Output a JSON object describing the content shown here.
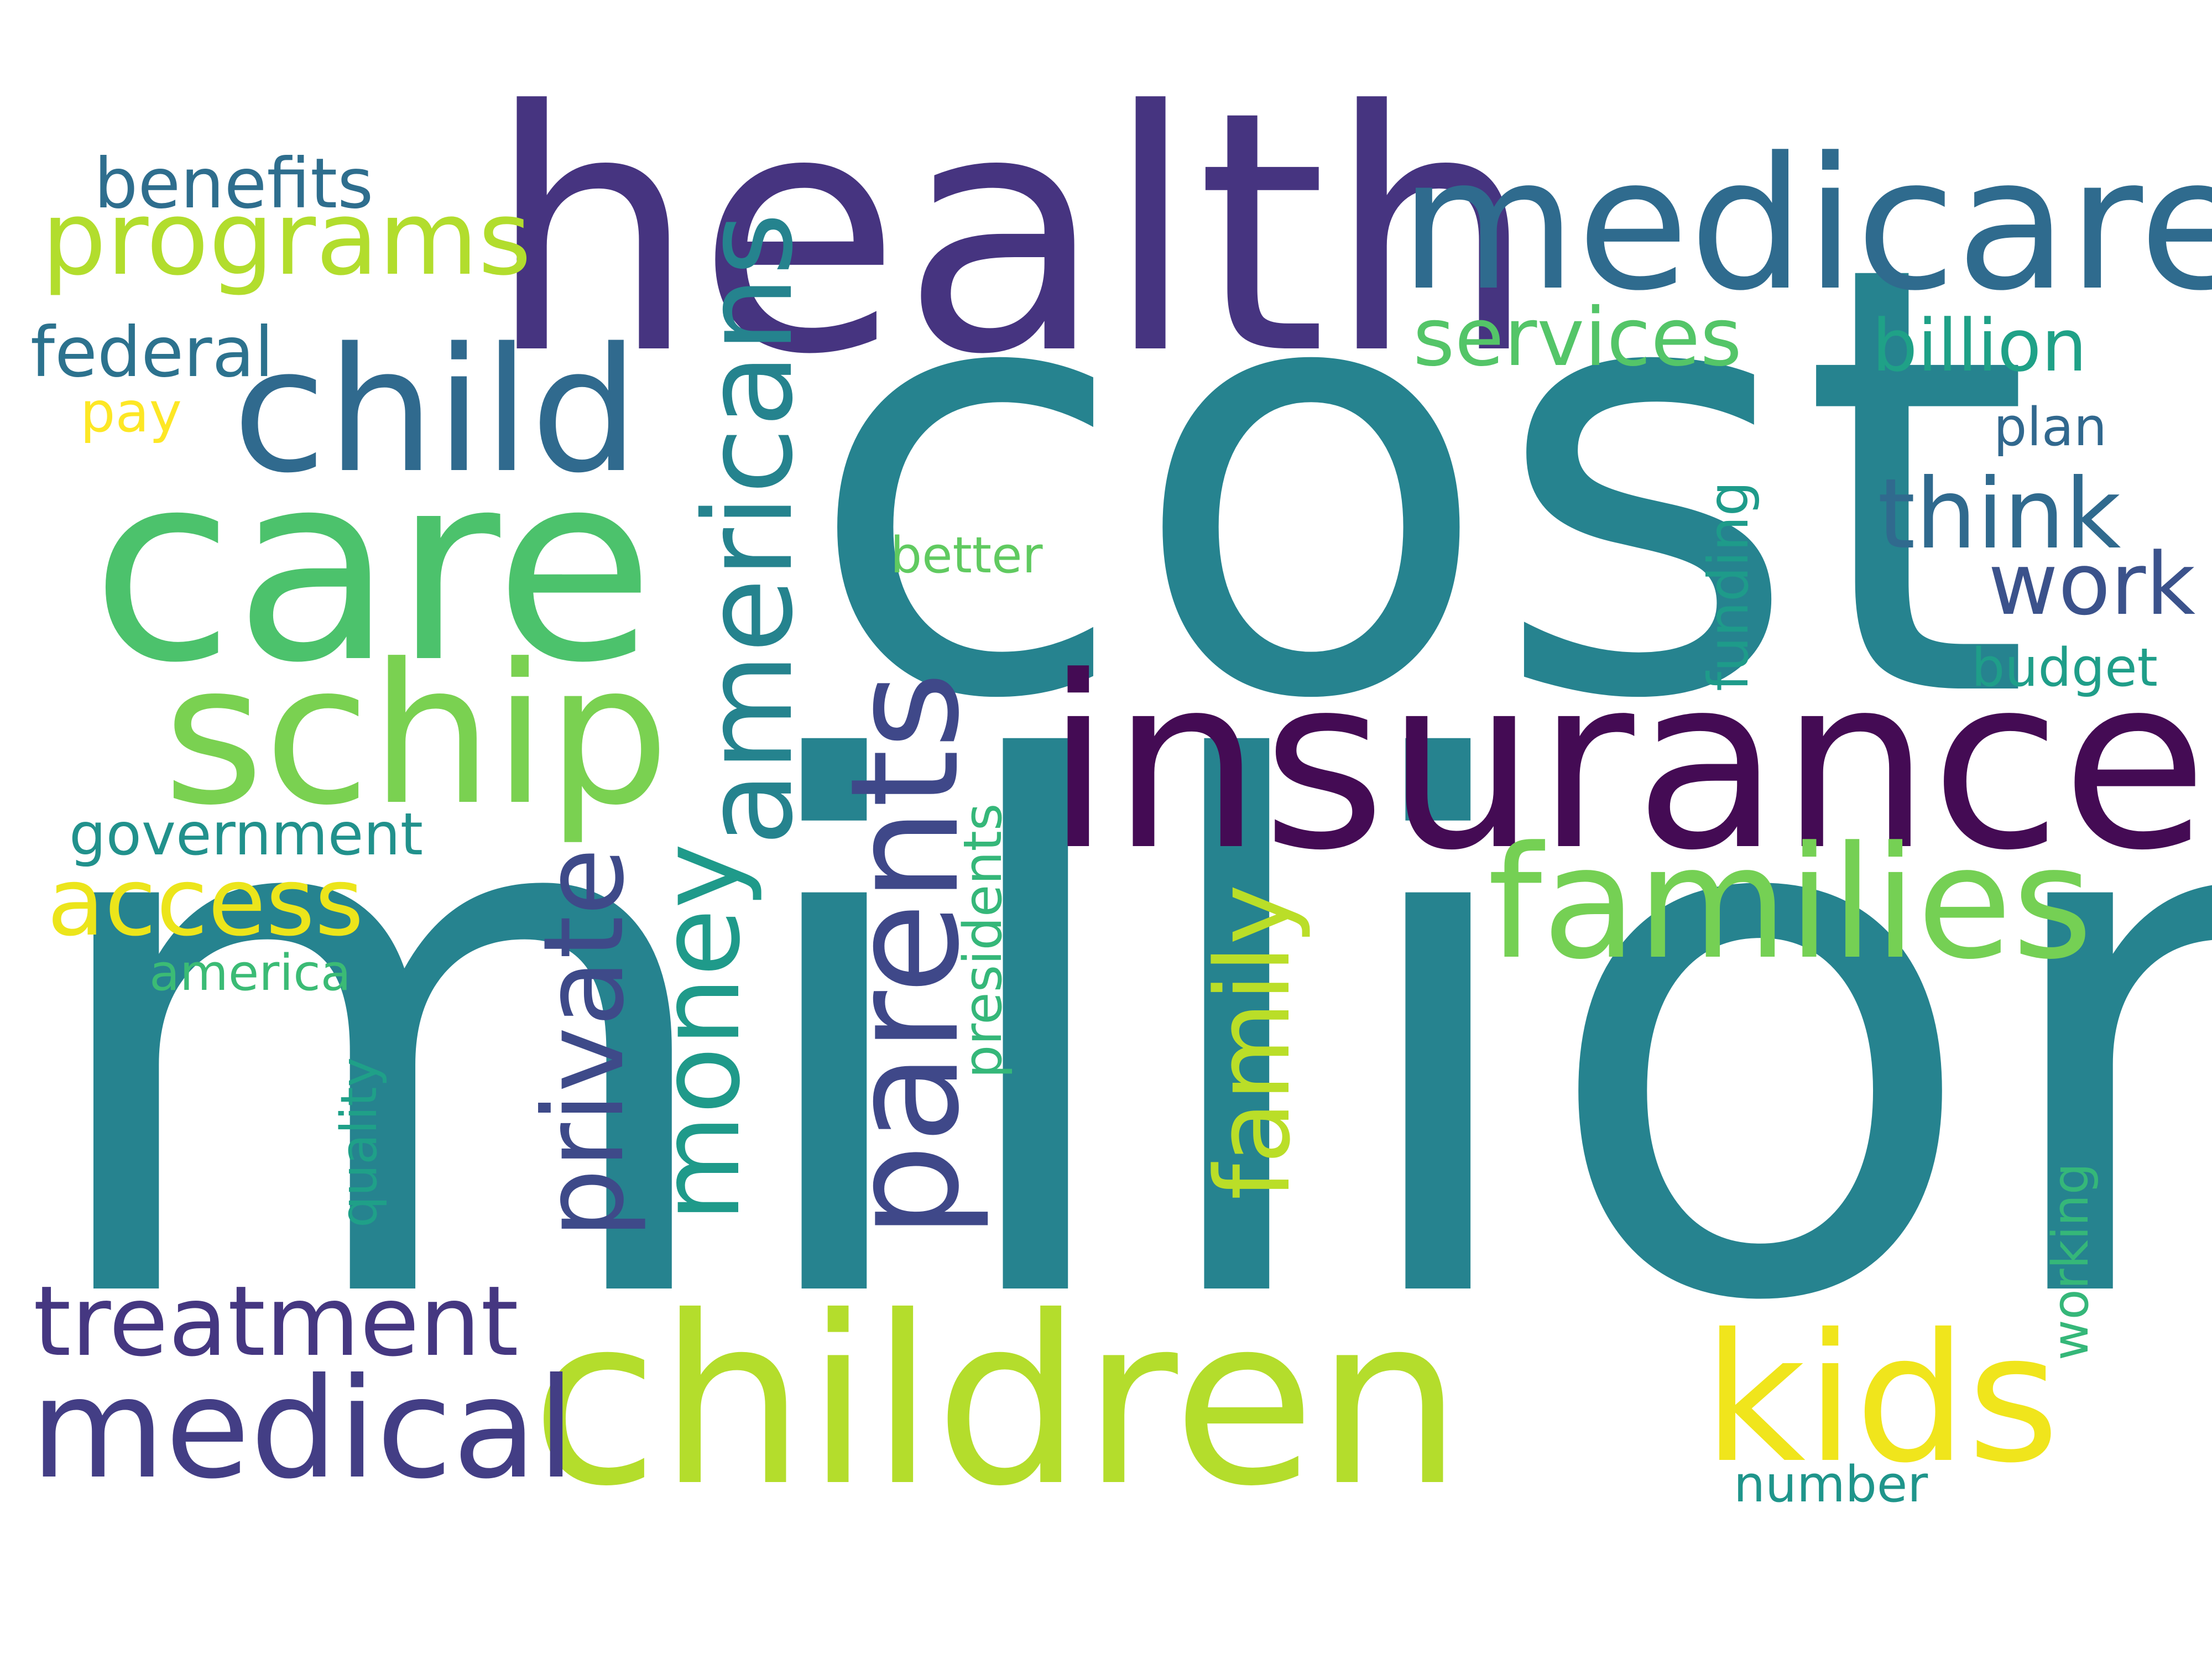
{
  "word_cloud": {
    "words": [
      {
        "text": "million",
        "color": "#26838f"
      },
      {
        "text": "cost",
        "color": "#26838f"
      },
      {
        "text": "health",
        "color": "#463480"
      },
      {
        "text": "insurance",
        "color": "#440b54"
      },
      {
        "text": "children",
        "color": "#b4dd2c"
      },
      {
        "text": "care",
        "color": "#4cc26c"
      },
      {
        "text": "medicare",
        "color": "#2f6b8e"
      },
      {
        "text": "child",
        "color": "#306a8e"
      },
      {
        "text": "schip",
        "color": "#7ad151"
      },
      {
        "text": "families",
        "color": "#75d054"
      },
      {
        "text": "kids",
        "color": "#f0e51c"
      },
      {
        "text": "parents",
        "color": "#3f4889"
      },
      {
        "text": "medical",
        "color": "#433e85"
      },
      {
        "text": "programs",
        "color": "#b2dd2d"
      },
      {
        "text": "treatment",
        "color": "#453781"
      },
      {
        "text": "americans",
        "color": "#25838e"
      },
      {
        "text": "private",
        "color": "#3e4a89"
      },
      {
        "text": "money",
        "color": "#1f9a8a"
      },
      {
        "text": "family",
        "color": "#bade28"
      },
      {
        "text": "access",
        "color": "#ece51b"
      },
      {
        "text": "services",
        "color": "#54c568"
      },
      {
        "text": "billion",
        "color": "#1fa187"
      },
      {
        "text": "think",
        "color": "#306a8e"
      },
      {
        "text": "work",
        "color": "#3b528b"
      },
      {
        "text": "benefits",
        "color": "#2e6e8e"
      },
      {
        "text": "federal",
        "color": "#2c728e"
      },
      {
        "text": "government",
        "color": "#21918c"
      },
      {
        "text": "america",
        "color": "#3bbb75"
      },
      {
        "text": "quality",
        "color": "#1fa088"
      },
      {
        "text": "presidents",
        "color": "#35b779"
      },
      {
        "text": "funding",
        "color": "#1e9b8a"
      },
      {
        "text": "working",
        "color": "#35b779"
      },
      {
        "text": "better",
        "color": "#60ca60"
      },
      {
        "text": "plan",
        "color": "#31688e"
      },
      {
        "text": "budget",
        "color": "#1f9e89"
      },
      {
        "text": "number",
        "color": "#1f958b"
      },
      {
        "text": "pay",
        "color": "#fde725"
      }
    ]
  }
}
